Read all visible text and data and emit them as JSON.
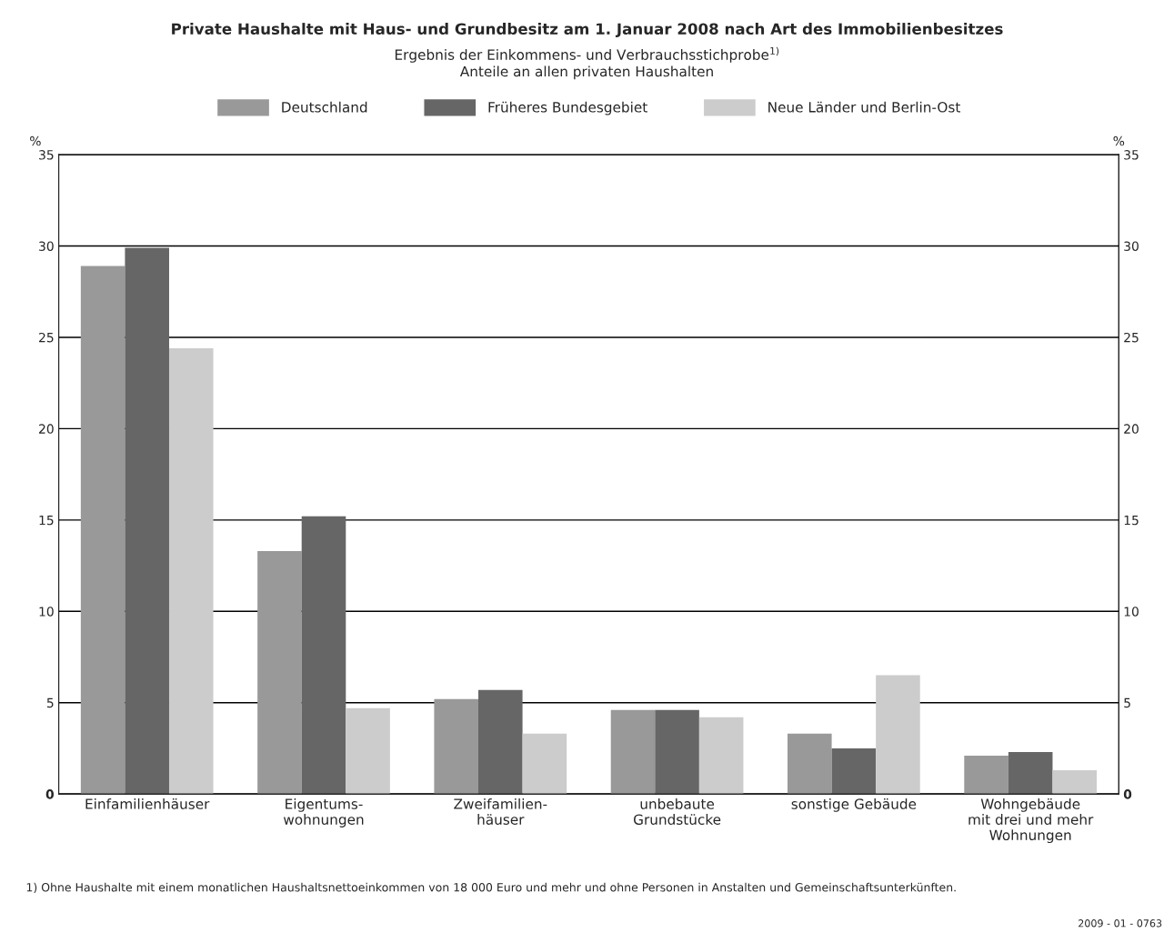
{
  "chart_data": {
    "type": "bar",
    "title": "Private Haushalte mit Haus- und Grundbesitz am 1. Januar 2008 nach Art des Immobilienbesitzes",
    "subtitle": "Ergebnis der Einkommens- und Verbrauchsstichprobe$^{1)}$\nAnteile an allen privaten Haushalten",
    "categories": [
      "Einfamilienhäuser",
      "Eigentums-\nwohnungen",
      "Zweifamilien-\nhäuser",
      "unbebaute\nGrundstücke",
      "sonstige Gebäude",
      "Wohngebäude\nmit drei und mehr\nWohnungen"
    ],
    "series": [
      {
        "name": "Deutschland",
        "color": "#999999",
        "values": [
          28.9,
          13.3,
          5.2,
          4.6,
          3.3,
          2.1
        ]
      },
      {
        "name": "Früheres Bundesgebiet",
        "color": "#666666",
        "values": [
          29.9,
          15.2,
          5.7,
          4.6,
          2.5,
          2.3
        ]
      },
      {
        "name": "Neue Länder und Berlin-Ost",
        "color": "#cccccc",
        "values": [
          24.4,
          4.7,
          3.3,
          4.2,
          6.5,
          1.3
        ]
      }
    ],
    "ylabel": "%",
    "y2label": "%",
    "ylim": [
      0,
      35
    ],
    "yticks": [
      0,
      5,
      10,
      15,
      20,
      25,
      30,
      35
    ],
    "y2lim": [
      0,
      35
    ],
    "y2ticks": [
      0,
      5,
      10,
      15,
      20,
      25,
      30,
      35
    ],
    "grid": "y",
    "legend": "top",
    "annotations": [
      "1) Ohne Haushalte mit einem monatlichen Haushaltsnettoeinkommen von 18 000 Euro und mehr und ohne Personen in Anstalten und Gemeinschaftsunterkünften.",
      "2009 - 01 - 0763"
    ]
  }
}
